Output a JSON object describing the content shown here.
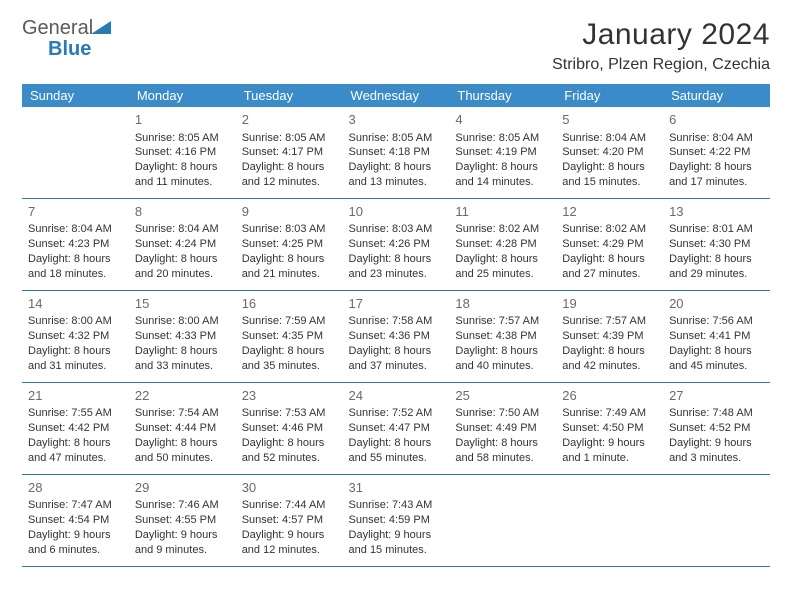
{
  "logo": {
    "word1": "General",
    "word2": "Blue"
  },
  "title": "January 2024",
  "location": "Stribro, Plzen Region, Czechia",
  "colors": {
    "header_bg": "#3b8bc8",
    "header_text": "#ffffff",
    "rule": "#2a7ab8",
    "text": "#333333",
    "daynum": "#6a6a6a",
    "logo_gray": "#5a5a5a",
    "logo_blue": "#2a7ab8",
    "page_bg": "#ffffff"
  },
  "day_headers": [
    "Sunday",
    "Monday",
    "Tuesday",
    "Wednesday",
    "Thursday",
    "Friday",
    "Saturday"
  ],
  "weeks": [
    [
      null,
      {
        "n": "1",
        "sr": "Sunrise: 8:05 AM",
        "ss": "Sunset: 4:16 PM",
        "dl": "Daylight: 8 hours and 11 minutes."
      },
      {
        "n": "2",
        "sr": "Sunrise: 8:05 AM",
        "ss": "Sunset: 4:17 PM",
        "dl": "Daylight: 8 hours and 12 minutes."
      },
      {
        "n": "3",
        "sr": "Sunrise: 8:05 AM",
        "ss": "Sunset: 4:18 PM",
        "dl": "Daylight: 8 hours and 13 minutes."
      },
      {
        "n": "4",
        "sr": "Sunrise: 8:05 AM",
        "ss": "Sunset: 4:19 PM",
        "dl": "Daylight: 8 hours and 14 minutes."
      },
      {
        "n": "5",
        "sr": "Sunrise: 8:04 AM",
        "ss": "Sunset: 4:20 PM",
        "dl": "Daylight: 8 hours and 15 minutes."
      },
      {
        "n": "6",
        "sr": "Sunrise: 8:04 AM",
        "ss": "Sunset: 4:22 PM",
        "dl": "Daylight: 8 hours and 17 minutes."
      }
    ],
    [
      {
        "n": "7",
        "sr": "Sunrise: 8:04 AM",
        "ss": "Sunset: 4:23 PM",
        "dl": "Daylight: 8 hours and 18 minutes."
      },
      {
        "n": "8",
        "sr": "Sunrise: 8:04 AM",
        "ss": "Sunset: 4:24 PM",
        "dl": "Daylight: 8 hours and 20 minutes."
      },
      {
        "n": "9",
        "sr": "Sunrise: 8:03 AM",
        "ss": "Sunset: 4:25 PM",
        "dl": "Daylight: 8 hours and 21 minutes."
      },
      {
        "n": "10",
        "sr": "Sunrise: 8:03 AM",
        "ss": "Sunset: 4:26 PM",
        "dl": "Daylight: 8 hours and 23 minutes."
      },
      {
        "n": "11",
        "sr": "Sunrise: 8:02 AM",
        "ss": "Sunset: 4:28 PM",
        "dl": "Daylight: 8 hours and 25 minutes."
      },
      {
        "n": "12",
        "sr": "Sunrise: 8:02 AM",
        "ss": "Sunset: 4:29 PM",
        "dl": "Daylight: 8 hours and 27 minutes."
      },
      {
        "n": "13",
        "sr": "Sunrise: 8:01 AM",
        "ss": "Sunset: 4:30 PM",
        "dl": "Daylight: 8 hours and 29 minutes."
      }
    ],
    [
      {
        "n": "14",
        "sr": "Sunrise: 8:00 AM",
        "ss": "Sunset: 4:32 PM",
        "dl": "Daylight: 8 hours and 31 minutes."
      },
      {
        "n": "15",
        "sr": "Sunrise: 8:00 AM",
        "ss": "Sunset: 4:33 PM",
        "dl": "Daylight: 8 hours and 33 minutes."
      },
      {
        "n": "16",
        "sr": "Sunrise: 7:59 AM",
        "ss": "Sunset: 4:35 PM",
        "dl": "Daylight: 8 hours and 35 minutes."
      },
      {
        "n": "17",
        "sr": "Sunrise: 7:58 AM",
        "ss": "Sunset: 4:36 PM",
        "dl": "Daylight: 8 hours and 37 minutes."
      },
      {
        "n": "18",
        "sr": "Sunrise: 7:57 AM",
        "ss": "Sunset: 4:38 PM",
        "dl": "Daylight: 8 hours and 40 minutes."
      },
      {
        "n": "19",
        "sr": "Sunrise: 7:57 AM",
        "ss": "Sunset: 4:39 PM",
        "dl": "Daylight: 8 hours and 42 minutes."
      },
      {
        "n": "20",
        "sr": "Sunrise: 7:56 AM",
        "ss": "Sunset: 4:41 PM",
        "dl": "Daylight: 8 hours and 45 minutes."
      }
    ],
    [
      {
        "n": "21",
        "sr": "Sunrise: 7:55 AM",
        "ss": "Sunset: 4:42 PM",
        "dl": "Daylight: 8 hours and 47 minutes."
      },
      {
        "n": "22",
        "sr": "Sunrise: 7:54 AM",
        "ss": "Sunset: 4:44 PM",
        "dl": "Daylight: 8 hours and 50 minutes."
      },
      {
        "n": "23",
        "sr": "Sunrise: 7:53 AM",
        "ss": "Sunset: 4:46 PM",
        "dl": "Daylight: 8 hours and 52 minutes."
      },
      {
        "n": "24",
        "sr": "Sunrise: 7:52 AM",
        "ss": "Sunset: 4:47 PM",
        "dl": "Daylight: 8 hours and 55 minutes."
      },
      {
        "n": "25",
        "sr": "Sunrise: 7:50 AM",
        "ss": "Sunset: 4:49 PM",
        "dl": "Daylight: 8 hours and 58 minutes."
      },
      {
        "n": "26",
        "sr": "Sunrise: 7:49 AM",
        "ss": "Sunset: 4:50 PM",
        "dl": "Daylight: 9 hours and 1 minute."
      },
      {
        "n": "27",
        "sr": "Sunrise: 7:48 AM",
        "ss": "Sunset: 4:52 PM",
        "dl": "Daylight: 9 hours and 3 minutes."
      }
    ],
    [
      {
        "n": "28",
        "sr": "Sunrise: 7:47 AM",
        "ss": "Sunset: 4:54 PM",
        "dl": "Daylight: 9 hours and 6 minutes."
      },
      {
        "n": "29",
        "sr": "Sunrise: 7:46 AM",
        "ss": "Sunset: 4:55 PM",
        "dl": "Daylight: 9 hours and 9 minutes."
      },
      {
        "n": "30",
        "sr": "Sunrise: 7:44 AM",
        "ss": "Sunset: 4:57 PM",
        "dl": "Daylight: 9 hours and 12 minutes."
      },
      {
        "n": "31",
        "sr": "Sunrise: 7:43 AM",
        "ss": "Sunset: 4:59 PM",
        "dl": "Daylight: 9 hours and 15 minutes."
      },
      null,
      null,
      null
    ]
  ]
}
